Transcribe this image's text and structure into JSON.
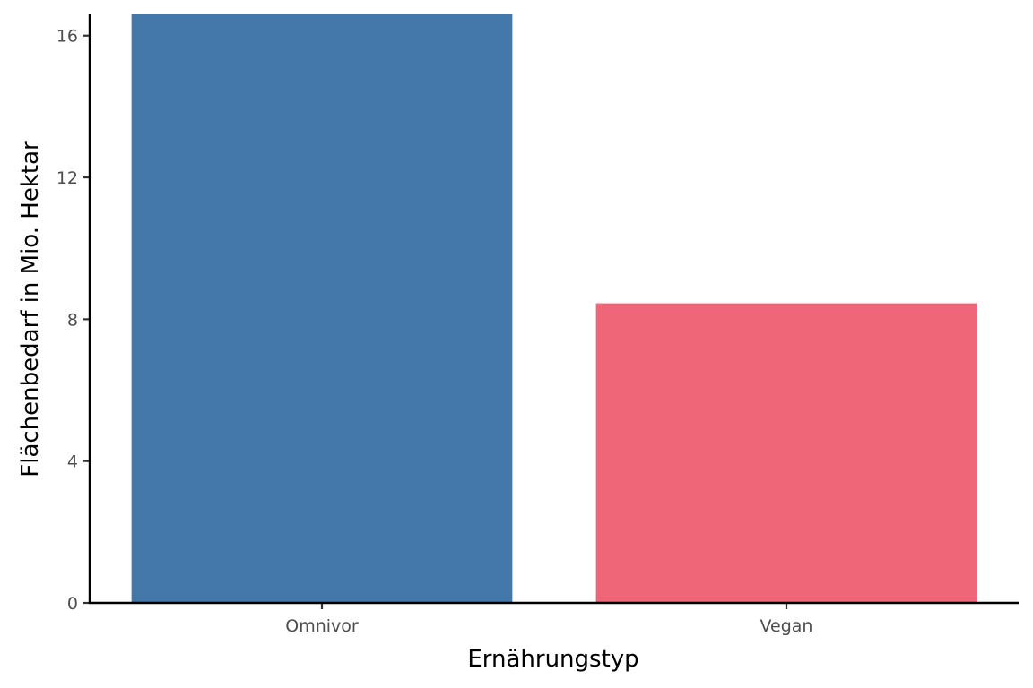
{
  "chart_data": {
    "type": "bar",
    "title": "",
    "xlabel": "Ernährungstyp",
    "ylabel": "Flächenbedarf in Mio. Hektar",
    "categories": [
      "Omnivor",
      "Vegan"
    ],
    "values": [
      16.6,
      8.45
    ],
    "colors": [
      "#4477AA",
      "#EE6677"
    ],
    "ylim": [
      0,
      16.6
    ],
    "yticks": [
      0,
      4,
      8,
      12,
      16
    ],
    "grid": false,
    "legend": "none"
  }
}
